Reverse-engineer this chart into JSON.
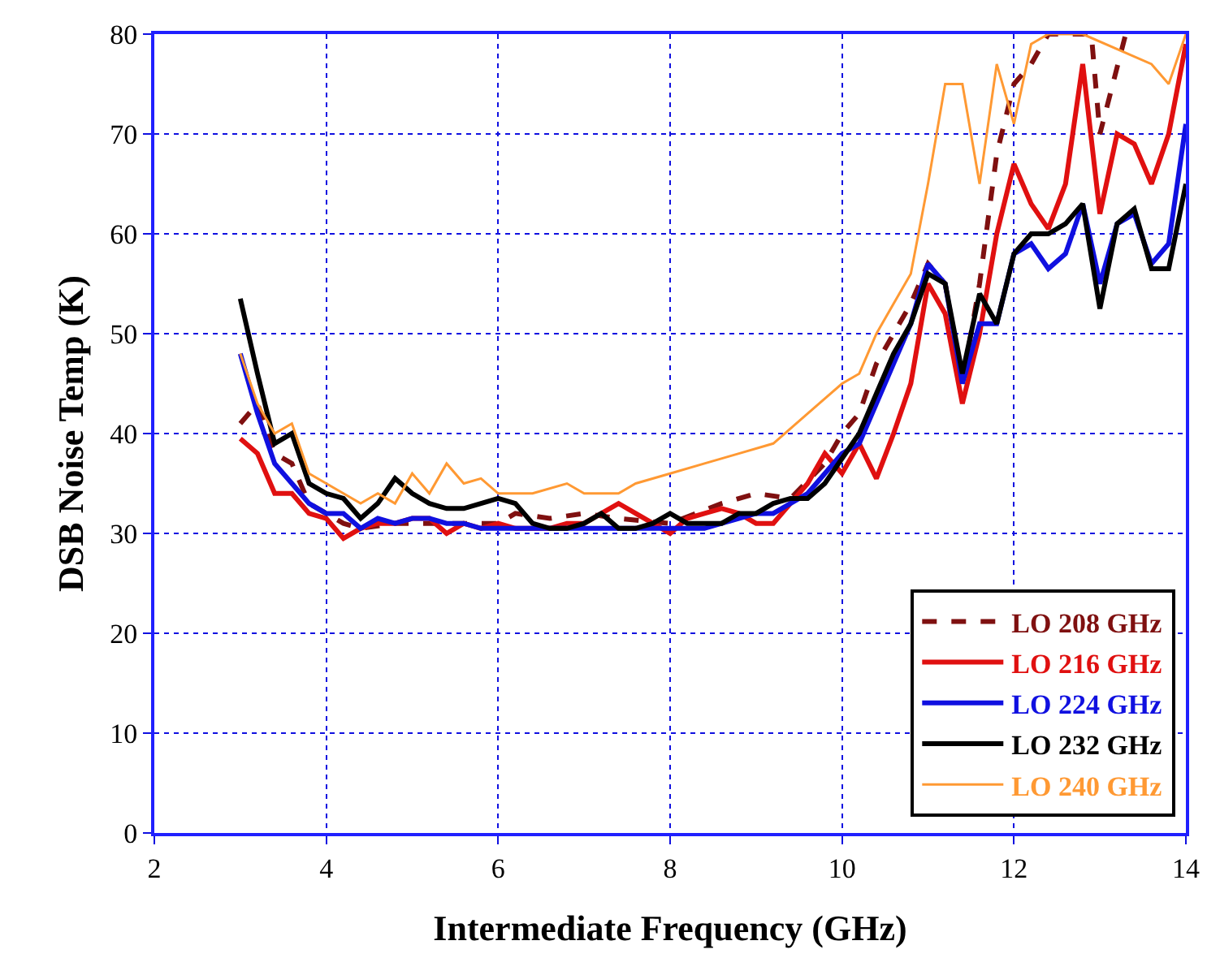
{
  "chart_data": {
    "type": "line",
    "xlabel": "Intermediate Frequency (GHz)",
    "ylabel": "DSB Noise Temp (K)",
    "xlim": [
      2,
      14
    ],
    "xticks": [
      2,
      4,
      6,
      8,
      10,
      12,
      14
    ],
    "ylim": [
      0,
      80
    ],
    "yticks": [
      0,
      10,
      20,
      30,
      40,
      50,
      60,
      70,
      80
    ],
    "grid": true,
    "legend": "bottom right",
    "marker": "none",
    "series": [
      {
        "name": "LO 208 GHz",
        "color": "#7f1010",
        "line_style": "dashed",
        "x": [
          3.0,
          3.2,
          3.4,
          3.6,
          3.8,
          4.0,
          4.2,
          4.4,
          4.8,
          5.2,
          5.6,
          6.0,
          6.2,
          6.6,
          7.0,
          7.4,
          8.0,
          8.6,
          9.0,
          9.4,
          9.8,
          10.0,
          10.2,
          10.4,
          10.6,
          10.8,
          11.0,
          11.2,
          11.4,
          11.6,
          11.8,
          12.0,
          12.2,
          12.4,
          12.9,
          13.0,
          13.3
        ],
        "values": [
          41,
          43,
          38,
          37,
          33,
          32,
          31,
          30.5,
          31,
          31,
          31,
          31,
          32,
          31.5,
          32,
          31.5,
          31,
          33,
          34,
          33.5,
          37,
          40,
          42,
          47,
          50,
          53,
          57,
          55,
          45,
          55,
          68,
          75,
          77,
          80,
          80,
          70,
          80
        ]
      },
      {
        "name": "LO 216 GHz",
        "color": "#e01010",
        "x": [
          3.0,
          3.2,
          3.4,
          3.6,
          3.8,
          4.0,
          4.2,
          4.4,
          4.6,
          4.8,
          5.0,
          5.2,
          5.4,
          5.6,
          5.8,
          6.0,
          6.2,
          6.4,
          6.6,
          6.8,
          7.0,
          7.2,
          7.4,
          7.6,
          7.8,
          8.0,
          8.2,
          8.4,
          8.6,
          8.8,
          9.0,
          9.2,
          9.4,
          9.6,
          9.8,
          10.0,
          10.2,
          10.4,
          10.6,
          10.8,
          11.0,
          11.2,
          11.4,
          11.6,
          11.8,
          12.0,
          12.2,
          12.4,
          12.6,
          12.8,
          13.0,
          13.2,
          13.4,
          13.6,
          13.8,
          14.0
        ],
        "values": [
          39.5,
          38,
          34,
          34,
          32,
          31.5,
          29.5,
          30.5,
          31,
          31,
          31.5,
          31.5,
          30,
          31,
          30.5,
          31,
          30.5,
          30.5,
          30.5,
          31,
          31,
          32,
          33,
          32,
          31,
          30,
          31.5,
          32,
          32.5,
          32,
          31,
          31,
          33,
          35,
          38,
          36,
          39,
          35.5,
          40,
          45,
          55,
          52,
          43,
          50,
          60,
          67,
          63,
          60.5,
          65,
          77,
          62,
          70,
          69,
          65,
          70,
          79
        ]
      },
      {
        "name": "LO 224 GHz",
        "color": "#1010e0",
        "x": [
          3.0,
          3.2,
          3.4,
          3.6,
          3.8,
          4.0,
          4.2,
          4.4,
          4.6,
          4.8,
          5.0,
          5.2,
          5.4,
          5.6,
          5.8,
          6.0,
          6.4,
          6.8,
          7.2,
          7.6,
          8.0,
          8.4,
          8.6,
          8.8,
          9.0,
          9.2,
          9.4,
          9.6,
          9.8,
          10.0,
          10.2,
          10.4,
          10.6,
          10.8,
          11.0,
          11.2,
          11.4,
          11.6,
          11.8,
          12.0,
          12.2,
          12.4,
          12.6,
          12.8,
          13.0,
          13.2,
          13.4,
          13.6,
          13.8,
          14.0
        ],
        "values": [
          48,
          42,
          37,
          35,
          33,
          32,
          32,
          30.5,
          31.5,
          31,
          31.5,
          31.5,
          31,
          31,
          30.5,
          30.5,
          30.5,
          30.5,
          30.5,
          30.5,
          30.5,
          30.5,
          31,
          31.5,
          32,
          32,
          33,
          34,
          36,
          38,
          39,
          43,
          47,
          51,
          57,
          55,
          45,
          51,
          51,
          58,
          59,
          56.5,
          58,
          63,
          55,
          61,
          62,
          57,
          59,
          71
        ]
      },
      {
        "name": "LO 232 GHz",
        "color": "#000000",
        "x": [
          3.0,
          3.2,
          3.4,
          3.6,
          3.8,
          4.0,
          4.2,
          4.4,
          4.6,
          4.8,
          5.0,
          5.2,
          5.4,
          5.6,
          5.8,
          6.0,
          6.2,
          6.4,
          6.6,
          6.8,
          7.0,
          7.2,
          7.4,
          7.6,
          7.8,
          8.0,
          8.2,
          8.4,
          8.6,
          8.8,
          9.0,
          9.2,
          9.4,
          9.6,
          9.8,
          10.0,
          10.2,
          10.4,
          10.6,
          10.8,
          11.0,
          11.2,
          11.4,
          11.6,
          11.8,
          12.0,
          12.2,
          12.4,
          12.6,
          12.8,
          13.0,
          13.2,
          13.4,
          13.6,
          13.8,
          14.0
        ],
        "values": [
          53.5,
          46,
          39,
          40,
          35,
          34,
          33.5,
          31.5,
          33,
          35.5,
          34,
          33,
          32.5,
          32.5,
          33,
          33.5,
          33,
          31,
          30.5,
          30.5,
          31,
          32,
          30.5,
          30.5,
          31,
          32,
          31,
          31,
          31,
          32,
          32,
          33,
          33.5,
          33.5,
          35,
          37.5,
          40,
          44,
          48,
          51,
          56,
          55,
          46,
          54,
          51,
          58,
          60,
          60,
          61,
          63,
          52.5,
          61,
          62.5,
          56.5,
          56.5,
          65
        ]
      },
      {
        "name": "LO 240 GHz",
        "color": "#ff9933",
        "x": [
          3.0,
          3.2,
          3.4,
          3.6,
          3.8,
          4.0,
          4.2,
          4.4,
          4.6,
          4.8,
          5.0,
          5.2,
          5.4,
          5.6,
          5.8,
          6.0,
          6.4,
          6.8,
          7.0,
          7.4,
          7.6,
          8.0,
          8.4,
          8.8,
          9.2,
          9.6,
          10.0,
          10.2,
          10.4,
          10.6,
          10.8,
          11.0,
          11.2,
          11.4,
          11.6,
          11.8,
          12.0,
          12.2,
          12.4,
          12.8,
          13.6,
          13.8,
          14.0
        ],
        "values": [
          48,
          43,
          40,
          41,
          36,
          35,
          34,
          33,
          34,
          33,
          36,
          34,
          37,
          35,
          35.5,
          34,
          34,
          35,
          34,
          34,
          35,
          36,
          37,
          38,
          39,
          42,
          45,
          46,
          50,
          53,
          56,
          65,
          75,
          75,
          65,
          77,
          71,
          79,
          80,
          80,
          77,
          75,
          80
        ]
      }
    ]
  }
}
